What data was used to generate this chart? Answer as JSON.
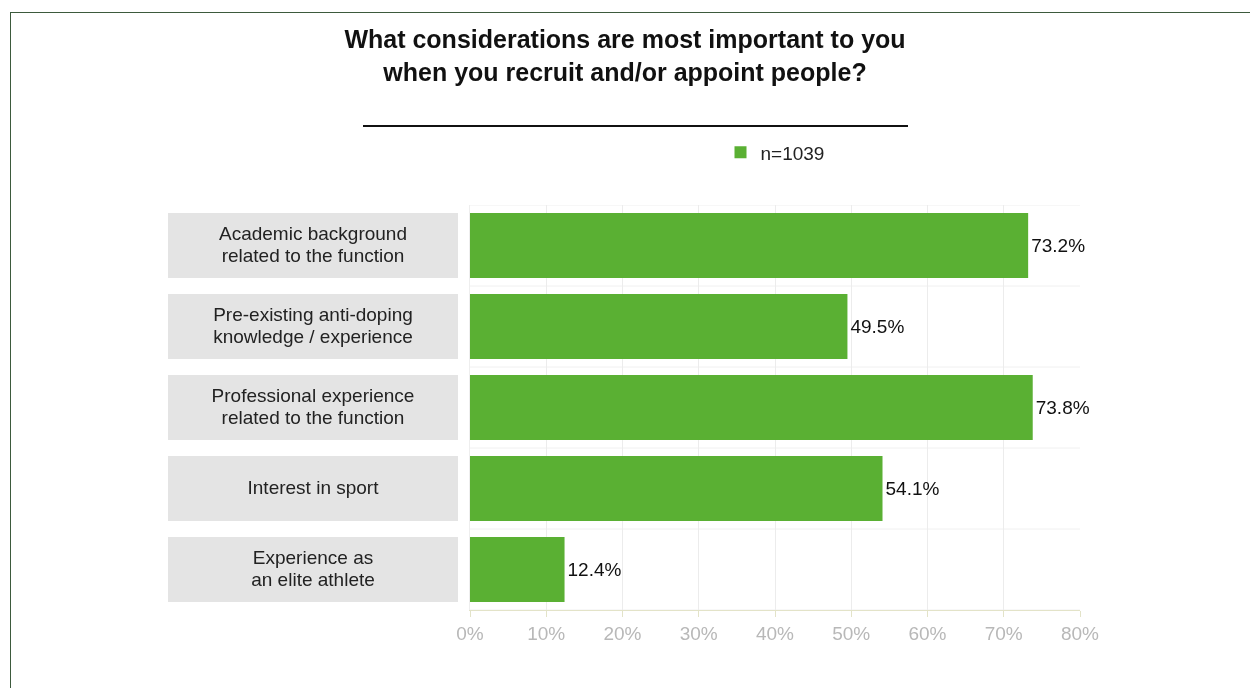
{
  "chart_data": {
    "type": "bar",
    "orientation": "horizontal",
    "title": "What considerations are most important to you\nwhen you recruit and/or appoint people?",
    "categories": [
      "Academic background\nrelated to the function",
      "Pre-existing anti-doping\nknowledge / experience",
      "Professional experience\nrelated to the function",
      "Interest in sport",
      "Experience as\nan elite athlete"
    ],
    "series": [
      {
        "name": "n=1039",
        "color": "#5ab033",
        "values": [
          73.2,
          49.5,
          73.8,
          54.1,
          12.4
        ],
        "value_labels": [
          "73.2%",
          "49.5%",
          "73.8%",
          "54.1%",
          "12.4%"
        ]
      }
    ],
    "xlim": [
      0,
      80
    ],
    "xticks": [
      {
        "value": 0,
        "label": "0%"
      },
      {
        "value": 10,
        "label": "10%"
      },
      {
        "value": 20,
        "label": "20%"
      },
      {
        "value": 30,
        "label": "30%"
      },
      {
        "value": 40,
        "label": "40%"
      },
      {
        "value": 50,
        "label": "50%"
      },
      {
        "value": 60,
        "label": "60%"
      },
      {
        "value": 70,
        "label": "70%"
      },
      {
        "value": 80,
        "label": "80%"
      }
    ],
    "grid": "x",
    "legend": "top"
  }
}
